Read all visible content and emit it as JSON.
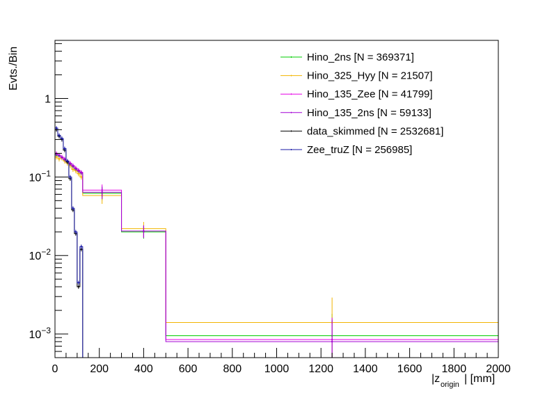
{
  "chart_data": {
    "type": "histogram",
    "scale_y": "log",
    "title": "",
    "xlabel_main": "|z",
    "xlabel_sub": "origin",
    "xlabel_unit": "| [mm]",
    "ylabel": "Evts./Bin",
    "xlim": [
      0,
      2000
    ],
    "ylim": [
      0.0005,
      5.5
    ],
    "x_ticks": [
      0,
      200,
      400,
      600,
      800,
      1000,
      1200,
      1400,
      1600,
      1800,
      2000
    ],
    "x_tick_labels": [
      "0",
      "200",
      "400",
      "600",
      "800",
      "1000",
      "1200",
      "1400",
      "1600",
      "1800",
      "2000"
    ],
    "y_decades": [
      {
        "value": 1,
        "base": "1",
        "exp": ""
      },
      {
        "value": 0.1,
        "base": "10",
        "exp": "−1"
      },
      {
        "value": 0.01,
        "base": "10",
        "exp": "−2"
      },
      {
        "value": 0.001,
        "base": "10",
        "exp": "−3"
      }
    ],
    "legend_position": "top-right",
    "series": [
      {
        "name": "Hino_2ns",
        "legend_label": "Hino_2ns [N = 369371]",
        "color": "#00cc00",
        "bins": [
          {
            "lo": 0,
            "hi": 12.5,
            "y": 0.19
          },
          {
            "lo": 12.5,
            "hi": 25,
            "y": 0.185
          },
          {
            "lo": 25,
            "hi": 37.5,
            "y": 0.175
          },
          {
            "lo": 37.5,
            "hi": 50,
            "y": 0.165
          },
          {
            "lo": 50,
            "hi": 62.5,
            "y": 0.155
          },
          {
            "lo": 62.5,
            "hi": 75,
            "y": 0.145
          },
          {
            "lo": 75,
            "hi": 87.5,
            "y": 0.135
          },
          {
            "lo": 87.5,
            "hi": 100,
            "y": 0.125
          },
          {
            "lo": 100,
            "hi": 112.5,
            "y": 0.118
          },
          {
            "lo": 112.5,
            "hi": 125,
            "y": 0.112
          },
          {
            "lo": 125,
            "hi": 300,
            "y": 0.062
          },
          {
            "lo": 300,
            "hi": 500,
            "y": 0.02
          },
          {
            "lo": 500,
            "hi": 2000,
            "y": 0.00095
          }
        ]
      },
      {
        "name": "Hino_325_Hyy",
        "legend_label": "Hino_325_Hyy [N = 21507]",
        "color": "#f2b400",
        "bins": [
          {
            "lo": 0,
            "hi": 12.5,
            "y": 0.18
          },
          {
            "lo": 12.5,
            "hi": 25,
            "y": 0.17
          },
          {
            "lo": 25,
            "hi": 37.5,
            "y": 0.175
          },
          {
            "lo": 37.5,
            "hi": 50,
            "y": 0.16
          },
          {
            "lo": 50,
            "hi": 62.5,
            "y": 0.15
          },
          {
            "lo": 62.5,
            "hi": 75,
            "y": 0.14
          },
          {
            "lo": 75,
            "hi": 87.5,
            "y": 0.125
          },
          {
            "lo": 87.5,
            "hi": 100,
            "y": 0.12
          },
          {
            "lo": 100,
            "hi": 112.5,
            "y": 0.11
          },
          {
            "lo": 112.5,
            "hi": 125,
            "y": 0.1
          },
          {
            "lo": 125,
            "hi": 300,
            "y": 0.058
          },
          {
            "lo": 300,
            "hi": 500,
            "y": 0.022
          },
          {
            "lo": 500,
            "hi": 2000,
            "y": 0.0014
          }
        ]
      },
      {
        "name": "Hino_135_Zee",
        "legend_label": "Hino_135_Zee [N = 41799]",
        "color": "#e600e6",
        "bins": [
          {
            "lo": 0,
            "hi": 12.5,
            "y": 0.2
          },
          {
            "lo": 12.5,
            "hi": 25,
            "y": 0.19
          },
          {
            "lo": 25,
            "hi": 37.5,
            "y": 0.18
          },
          {
            "lo": 37.5,
            "hi": 50,
            "y": 0.17
          },
          {
            "lo": 50,
            "hi": 62.5,
            "y": 0.16
          },
          {
            "lo": 62.5,
            "hi": 75,
            "y": 0.15
          },
          {
            "lo": 75,
            "hi": 87.5,
            "y": 0.14
          },
          {
            "lo": 87.5,
            "hi": 100,
            "y": 0.13
          },
          {
            "lo": 100,
            "hi": 112.5,
            "y": 0.122
          },
          {
            "lo": 112.5,
            "hi": 125,
            "y": 0.115
          },
          {
            "lo": 125,
            "hi": 300,
            "y": 0.068
          },
          {
            "lo": 300,
            "hi": 500,
            "y": 0.0205
          },
          {
            "lo": 500,
            "hi": 2000,
            "y": 0.00085
          }
        ]
      },
      {
        "name": "Hino_135_2ns",
        "legend_label": "Hino_135_2ns [N = 59133]",
        "color": "#a400d6",
        "bins": [
          {
            "lo": 0,
            "hi": 12.5,
            "y": 0.195
          },
          {
            "lo": 12.5,
            "hi": 25,
            "y": 0.188
          },
          {
            "lo": 25,
            "hi": 37.5,
            "y": 0.178
          },
          {
            "lo": 37.5,
            "hi": 50,
            "y": 0.168
          },
          {
            "lo": 50,
            "hi": 62.5,
            "y": 0.158
          },
          {
            "lo": 62.5,
            "hi": 75,
            "y": 0.148
          },
          {
            "lo": 75,
            "hi": 87.5,
            "y": 0.138
          },
          {
            "lo": 87.5,
            "hi": 100,
            "y": 0.128
          },
          {
            "lo": 100,
            "hi": 112.5,
            "y": 0.12
          },
          {
            "lo": 112.5,
            "hi": 125,
            "y": 0.113
          },
          {
            "lo": 125,
            "hi": 300,
            "y": 0.064
          },
          {
            "lo": 300,
            "hi": 500,
            "y": 0.0205
          },
          {
            "lo": 500,
            "hi": 2000,
            "y": 0.0008
          }
        ]
      },
      {
        "name": "data_skimmed",
        "legend_label": "data_skimmed [N = 2532681]",
        "color": "#000000",
        "bins": [
          {
            "lo": 0,
            "hi": 12.5,
            "y": 0.4
          },
          {
            "lo": 12.5,
            "hi": 25,
            "y": 0.33
          },
          {
            "lo": 25,
            "hi": 37.5,
            "y": 0.3
          },
          {
            "lo": 37.5,
            "hi": 50,
            "y": 0.22
          },
          {
            "lo": 50,
            "hi": 62.5,
            "y": 0.155
          },
          {
            "lo": 62.5,
            "hi": 75,
            "y": 0.095
          },
          {
            "lo": 75,
            "hi": 87.5,
            "y": 0.038
          },
          {
            "lo": 87.5,
            "hi": 100,
            "y": 0.019
          },
          {
            "lo": 100,
            "hi": 112.5,
            "y": 0.004
          },
          {
            "lo": 112.5,
            "hi": 125,
            "y": 0.012
          }
        ]
      },
      {
        "name": "Zee_truZ",
        "legend_label": "Zee_truZ [N = 256985]",
        "color": "#1a1aa6",
        "bins": [
          {
            "lo": 0,
            "hi": 12.5,
            "y": 0.42
          },
          {
            "lo": 12.5,
            "hi": 25,
            "y": 0.34
          },
          {
            "lo": 25,
            "hi": 37.5,
            "y": 0.31
          },
          {
            "lo": 37.5,
            "hi": 50,
            "y": 0.23
          },
          {
            "lo": 50,
            "hi": 62.5,
            "y": 0.16
          },
          {
            "lo": 62.5,
            "hi": 75,
            "y": 0.1
          },
          {
            "lo": 75,
            "hi": 87.5,
            "y": 0.04
          },
          {
            "lo": 87.5,
            "hi": 100,
            "y": 0.02
          },
          {
            "lo": 100,
            "hi": 112.5,
            "y": 0.0045
          },
          {
            "lo": 112.5,
            "hi": 125,
            "y": 0.013
          }
        ]
      }
    ]
  }
}
